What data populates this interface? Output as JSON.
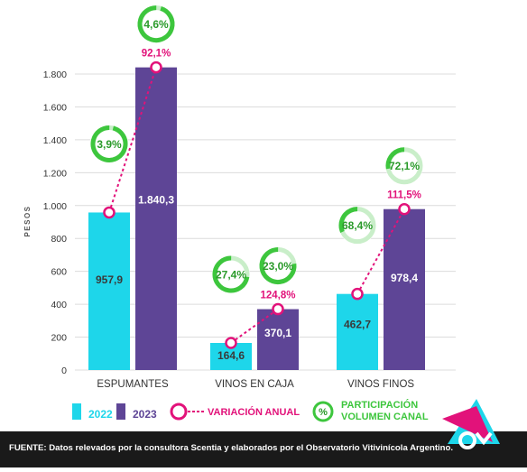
{
  "chart_data": {
    "type": "bar",
    "categories": [
      "ESPUMANTES",
      "VINOS EN CAJA",
      "VINOS FINOS"
    ],
    "ylabel": "PESOS",
    "ylim": [
      0,
      2000
    ],
    "yticks": [
      0,
      200,
      400,
      600,
      800,
      1000,
      1200,
      1400,
      1600,
      1800
    ],
    "ytick_labels": [
      "0",
      "200",
      "400",
      "600",
      "800",
      "1.000",
      "1.200",
      "1.400",
      "1.600",
      "1.800"
    ],
    "grid": true,
    "series": [
      {
        "name": "2022",
        "values": [
          957.9,
          164.6,
          462.7
        ],
        "labels": [
          "957,9",
          "164,6",
          "462,7"
        ]
      },
      {
        "name": "2023",
        "values": [
          1840.3,
          370.1,
          978.4
        ],
        "labels": [
          "1.840,3",
          "370,1",
          "978,4"
        ]
      }
    ],
    "variacion_anual": {
      "name": "VARIACIÓN ANUAL",
      "labels": [
        "92,1%",
        "124,8%",
        "111,5%"
      ]
    },
    "participacion": {
      "name": "PARTICIPACIÓN VOLUMEN CANAL",
      "legend_symbol": "%",
      "series_2022": {
        "values": [
          3.9,
          27.4,
          68.4
        ],
        "labels": [
          "3,9%",
          "27,4%",
          "68,4%"
        ]
      },
      "series_2023": {
        "values": [
          4.6,
          23.0,
          72.1
        ],
        "labels": [
          "4,6%",
          "23,0%",
          "72,1%"
        ]
      }
    }
  },
  "legend": {
    "label_2022": "2022",
    "label_2023": "2023",
    "variacion": "VARIACIÓN ANUAL",
    "participacion_line1": "PARTICIPACIÓN",
    "participacion_line2": "VOLUMEN CANAL",
    "participacion_symbol": "%"
  },
  "footer": {
    "text": "FUENTE: Datos relevados por la consultora Scentia y elaborados por el Observatorio Vitivinícola Argentino."
  },
  "colors": {
    "bar_2022": "#1ed6ea",
    "bar_2023": "#5e4596",
    "variacion": "#e2127a",
    "participacion_ring": "#3dc63d",
    "participacion_track": "#c9eec9",
    "participacion_text": "#2a9a2a",
    "grid": "#dcdcdc",
    "axis_text": "#333333",
    "footer_bg": "#1a1a1a",
    "logo_triangle_1": "#1ed6ea",
    "logo_triangle_2": "#e2127a",
    "logo_mark": "#ffffff"
  },
  "logo": {
    "icon": "ova-logo-icon"
  }
}
